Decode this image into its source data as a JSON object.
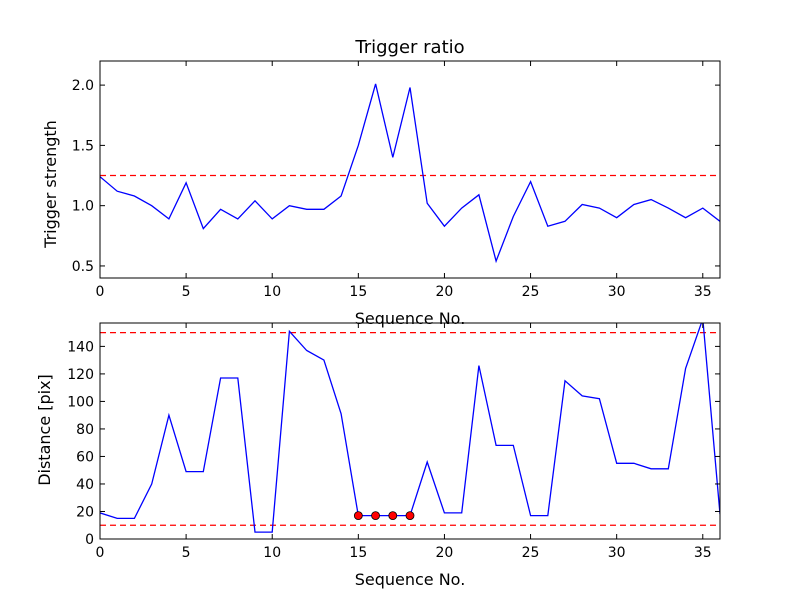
{
  "colors": {
    "line": "#0000ff",
    "threshold": "#ff0000",
    "marker": "#ff0000",
    "axes": "#000000",
    "background": "#ffffff"
  },
  "chart_data": [
    {
      "type": "line",
      "title": "Trigger ratio",
      "xlabel": "Sequence No.",
      "ylabel": "Trigger strength",
      "xlim": [
        0,
        36
      ],
      "ylim": [
        0.4,
        2.2
      ],
      "xticks": [
        0,
        5,
        10,
        15,
        20,
        25,
        30,
        35
      ],
      "xtick_labels": [
        "0",
        "5",
        "10",
        "15",
        "20",
        "25",
        "30",
        "35"
      ],
      "yticks": [
        0.5,
        1.0,
        1.5,
        2.0
      ],
      "ytick_labels": [
        "0.5",
        "1.0",
        "1.5",
        "2.0"
      ],
      "grid": false,
      "x": [
        0,
        1,
        2,
        3,
        4,
        5,
        6,
        7,
        8,
        9,
        10,
        11,
        12,
        13,
        14,
        15,
        16,
        17,
        18,
        19,
        20,
        21,
        22,
        23,
        24,
        25,
        26,
        27,
        28,
        29,
        30,
        31,
        32,
        33,
        34,
        35,
        36
      ],
      "values": [
        1.24,
        1.12,
        1.08,
        1.0,
        0.89,
        1.19,
        0.81,
        0.97,
        0.89,
        1.04,
        0.89,
        1.0,
        0.97,
        0.97,
        1.08,
        1.5,
        2.01,
        1.4,
        1.98,
        1.02,
        0.83,
        0.98,
        1.09,
        0.54,
        0.91,
        1.2,
        0.83,
        0.87,
        1.01,
        0.98,
        0.9,
        1.01,
        1.05,
        0.98,
        0.9,
        0.98,
        0.87
      ],
      "thresholds": [
        1.25
      ]
    },
    {
      "type": "line",
      "title": "",
      "xlabel": "Sequence No.",
      "ylabel": "Distance [pix]",
      "xlim": [
        0,
        36
      ],
      "ylim": [
        0,
        157
      ],
      "xticks": [
        0,
        5,
        10,
        15,
        20,
        25,
        30,
        35
      ],
      "xtick_labels": [
        "0",
        "5",
        "10",
        "15",
        "20",
        "25",
        "30",
        "35"
      ],
      "yticks": [
        0,
        20,
        40,
        60,
        80,
        100,
        120,
        140
      ],
      "ytick_labels": [
        "0",
        "20",
        "40",
        "60",
        "80",
        "100",
        "120",
        "140"
      ],
      "grid": false,
      "x": [
        0,
        1,
        2,
        3,
        4,
        5,
        6,
        7,
        8,
        9,
        10,
        11,
        12,
        13,
        14,
        15,
        16,
        17,
        18,
        19,
        20,
        21,
        22,
        23,
        24,
        25,
        26,
        27,
        28,
        29,
        30,
        31,
        32,
        33,
        34,
        35,
        36
      ],
      "values": [
        19,
        15,
        15,
        40,
        90,
        49,
        49,
        117,
        117,
        5,
        5,
        151,
        137,
        130,
        91,
        17,
        17,
        17,
        17,
        56,
        19,
        19,
        126,
        68,
        68,
        17,
        17,
        115,
        104,
        102,
        55,
        55,
        51,
        51,
        124,
        160,
        18
      ],
      "thresholds": [
        150,
        10
      ],
      "highlight_points": {
        "x": [
          15,
          16,
          17,
          18
        ],
        "y": [
          17,
          17,
          17,
          17
        ]
      }
    }
  ]
}
